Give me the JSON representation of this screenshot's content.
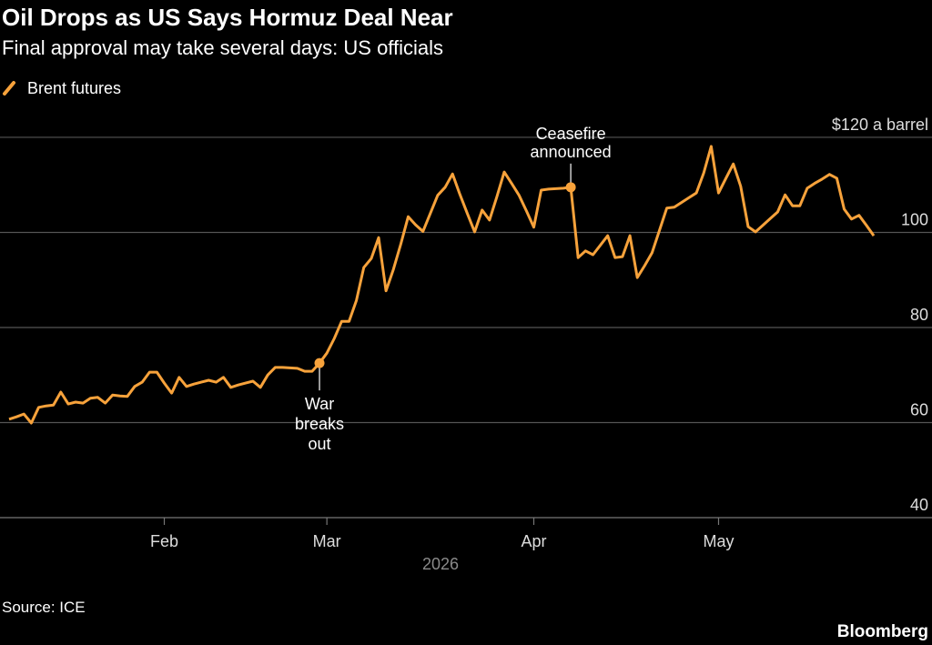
{
  "chart_data": {
    "type": "line",
    "title": "Oil Drops as US Says Hormuz Deal Near",
    "subtitle": "Final approval may take several days: US officials",
    "x_label": "2026",
    "source": "Source: ICE",
    "brand": "Bloomberg",
    "categories": [
      null,
      null,
      null,
      null,
      null,
      null,
      null,
      null,
      null,
      null,
      null,
      null,
      null,
      null,
      null,
      null,
      null,
      null,
      null,
      null,
      null,
      "Feb",
      null,
      null,
      null,
      null,
      null,
      null,
      null,
      null,
      null,
      null,
      null,
      null,
      null,
      null,
      null,
      null,
      null,
      null,
      null,
      null,
      null,
      "Mar",
      null,
      null,
      null,
      null,
      null,
      null,
      null,
      null,
      null,
      null,
      null,
      null,
      null,
      null,
      null,
      null,
      null,
      null,
      null,
      null,
      null,
      null,
      null,
      null,
      null,
      null,
      null,
      "Apr",
      null,
      null,
      null,
      null,
      null,
      null,
      null,
      null,
      null,
      null,
      null,
      null,
      null,
      null,
      null,
      null,
      null,
      null,
      null,
      null,
      null,
      null,
      null,
      null,
      "May",
      null,
      null,
      null,
      null,
      null,
      null,
      null,
      null,
      null,
      null,
      null,
      null,
      null,
      null,
      null,
      null,
      null,
      null,
      null,
      null,
      null
    ],
    "series": [
      {
        "name": "Brent futures",
        "color": "#f7a23b",
        "values": [
          60.7,
          61.2,
          61.8,
          59.9,
          63.2,
          63.5,
          63.7,
          66.4,
          63.9,
          64.3,
          64.1,
          65.1,
          65.3,
          64.1,
          65.8,
          65.6,
          65.5,
          67.6,
          68.5,
          70.6,
          70.6,
          68.3,
          66.2,
          69.5,
          67.6,
          68.1,
          68.5,
          68.9,
          68.5,
          69.5,
          67.4,
          67.9,
          68.3,
          68.7,
          67.4,
          70.0,
          71.6,
          71.6,
          71.5,
          71.4,
          70.8,
          70.8,
          72.5,
          74.6,
          77.7,
          81.3,
          81.3,
          85.7,
          92.6,
          94.5,
          98.9,
          87.7,
          92.2,
          97.5,
          103.3,
          101.6,
          100.2,
          104.0,
          107.8,
          109.5,
          112.3,
          108.0,
          104.0,
          100.1,
          104.7,
          102.6,
          107.5,
          112.7,
          110.3,
          107.8,
          104.5,
          101.1,
          108.9,
          109.1,
          109.2,
          109.3,
          109.5,
          94.7,
          96.1,
          95.3,
          97.3,
          99.3,
          94.7,
          94.9,
          99.3,
          90.5,
          93.0,
          95.7,
          100.4,
          105.1,
          105.3,
          106.3,
          107.3,
          108.3,
          112.5,
          118.1,
          108.3,
          111.4,
          114.4,
          109.7,
          101.2,
          100.1,
          101.5,
          102.9,
          104.3,
          107.9,
          105.6,
          105.6,
          109.3,
          110.3,
          111.2,
          112.2,
          111.4,
          104.9,
          102.8,
          103.6,
          101.5,
          99.3
        ]
      }
    ],
    "annotations": [
      {
        "text": [
          "War",
          "breaks",
          "out"
        ],
        "index": 42,
        "position": "below"
      },
      {
        "text": [
          "Ceasefire",
          "announced"
        ],
        "index": 76,
        "position": "above"
      }
    ],
    "ylim": [
      40,
      122
    ],
    "yticks": [
      40,
      60,
      80,
      100,
      {
        "value": 120,
        "label": "$120 a barrel"
      }
    ],
    "grid": true,
    "legend": "top-left"
  }
}
